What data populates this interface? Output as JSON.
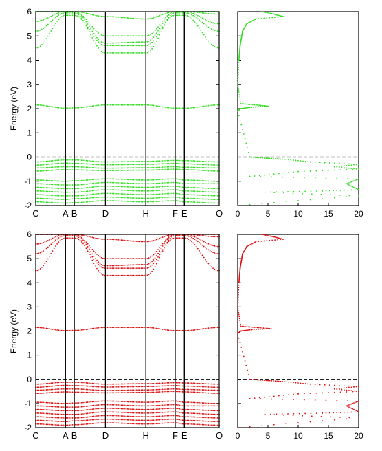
{
  "chart_data": [
    {
      "type": "line",
      "title": "",
      "ylabel": "Energy (eV)",
      "xlabel": "",
      "ylim": [
        -2,
        6
      ],
      "yticks": [
        "-2",
        "-1",
        "0",
        "1",
        "2",
        "3",
        "4",
        "5",
        "6"
      ],
      "kpoint_labels": [
        "C",
        "A",
        "B",
        "D",
        "H",
        "F",
        "E",
        "O"
      ],
      "kpoint_positions": [
        0,
        0.162,
        0.21,
        0.38,
        0.6,
        0.76,
        0.81,
        1.0
      ],
      "grid": false,
      "fermi_level": 0,
      "series_color": "#33dd22",
      "bands": [
        {
          "values": [
            -0.2,
            -0.12,
            -0.12,
            -0.2,
            -0.18,
            -0.14,
            -0.15,
            -0.2
          ]
        },
        {
          "values": [
            -0.33,
            -0.25,
            -0.26,
            -0.32,
            -0.3,
            -0.26,
            -0.28,
            -0.33
          ]
        },
        {
          "values": [
            -0.45,
            -0.4,
            -0.4,
            -0.46,
            -0.44,
            -0.4,
            -0.42,
            -0.45
          ]
        },
        {
          "values": [
            -0.58,
            -0.52,
            -0.53,
            -0.56,
            -0.54,
            -0.5,
            -0.52,
            -0.58
          ]
        },
        {
          "values": [
            -0.95,
            -1.0,
            -0.98,
            -0.9,
            -0.95,
            -0.9,
            -0.95,
            -1.0
          ]
        },
        {
          "values": [
            -1.1,
            -1.15,
            -1.15,
            -1.05,
            -1.1,
            -1.05,
            -1.1,
            -1.1
          ]
        },
        {
          "values": [
            -1.25,
            -1.3,
            -1.3,
            -1.2,
            -1.25,
            -1.2,
            -1.25,
            -1.3
          ]
        },
        {
          "values": [
            -1.4,
            -1.45,
            -1.45,
            -1.35,
            -1.4,
            -1.35,
            -1.4,
            -1.45
          ]
        },
        {
          "values": [
            -1.55,
            -1.6,
            -1.6,
            -1.5,
            -1.55,
            -1.5,
            -1.55,
            -1.6
          ]
        },
        {
          "values": [
            -1.7,
            -1.75,
            -1.72,
            -1.65,
            -1.7,
            -1.65,
            -1.7,
            -1.75
          ]
        },
        {
          "values": [
            -1.85,
            -1.9,
            -1.88,
            -1.8,
            -1.85,
            -1.8,
            -1.85,
            -1.9
          ]
        },
        {
          "values": [
            2.15,
            2.02,
            2.03,
            2.15,
            2.15,
            2.02,
            2.02,
            2.15
          ]
        },
        {
          "values": [
            4.5,
            5.85,
            5.85,
            4.6,
            4.6,
            5.85,
            5.85,
            4.5
          ]
        },
        {
          "values": [
            5.2,
            5.95,
            5.95,
            4.3,
            4.3,
            5.95,
            5.95,
            5.2
          ]
        },
        {
          "values": [
            5.6,
            6.0,
            6.0,
            4.7,
            4.75,
            6.0,
            6.0,
            5.5
          ]
        },
        {
          "values": [
            6.0,
            6.0,
            6.0,
            5.0,
            5.0,
            6.0,
            6.0,
            5.9
          ]
        },
        {
          "values": [
            6.0,
            6.0,
            6.0,
            5.8,
            5.7,
            6.0,
            6.0,
            6.0
          ]
        }
      ],
      "dos": {
        "xlim": [
          0,
          20
        ],
        "xticks": [
          "0",
          "5",
          "10",
          "15",
          "20"
        ],
        "energy": [
          6.0,
          5.9,
          5.8,
          5.7,
          5.5,
          5.2,
          4.9,
          4.6,
          4.3,
          4.0,
          3.0,
          2.2,
          2.15,
          2.1,
          2.05,
          2.0,
          1.9,
          0.0,
          -0.05,
          -0.1,
          -0.2,
          -0.3,
          -0.4,
          -0.5,
          -0.6,
          -0.8,
          -0.9,
          -1.1,
          -1.35,
          -1.4,
          -1.45,
          -1.6,
          -2.0
        ],
        "dos_values": [
          4.0,
          6.0,
          7.5,
          3.0,
          1.5,
          0.8,
          0.6,
          0.4,
          0.3,
          0.2,
          0.0,
          0.5,
          3.0,
          5.0,
          2.0,
          0.5,
          0.0,
          2.0,
          5.0,
          8.0,
          12.0,
          20.0,
          16.0,
          20.0,
          10.0,
          2.0,
          20.0,
          18.0,
          20.0,
          14.0,
          4.5,
          20.0,
          0.0
        ],
        "dos_color": "#33dd22"
      }
    },
    {
      "type": "line",
      "title": "",
      "ylabel": "Energy (eV)",
      "xlabel": "",
      "ylim": [
        -2,
        6
      ],
      "yticks": [
        "-2",
        "-1",
        "0",
        "1",
        "2",
        "3",
        "4",
        "5",
        "6"
      ],
      "kpoint_labels": [
        "C",
        "A",
        "B",
        "D",
        "H",
        "F",
        "E",
        "O"
      ],
      "kpoint_positions": [
        0,
        0.162,
        0.21,
        0.38,
        0.6,
        0.76,
        0.81,
        1.0
      ],
      "grid": false,
      "fermi_level": 0,
      "series_color": "#dd1111",
      "bands": [
        {
          "values": [
            -0.2,
            -0.12,
            -0.12,
            -0.2,
            -0.18,
            -0.14,
            -0.15,
            -0.2
          ]
        },
        {
          "values": [
            -0.33,
            -0.25,
            -0.26,
            -0.32,
            -0.3,
            -0.26,
            -0.28,
            -0.33
          ]
        },
        {
          "values": [
            -0.45,
            -0.4,
            -0.4,
            -0.46,
            -0.44,
            -0.4,
            -0.42,
            -0.45
          ]
        },
        {
          "values": [
            -0.58,
            -0.52,
            -0.53,
            -0.56,
            -0.54,
            -0.5,
            -0.52,
            -0.58
          ]
        },
        {
          "values": [
            -0.95,
            -1.0,
            -0.98,
            -0.9,
            -0.95,
            -0.9,
            -0.95,
            -1.0
          ]
        },
        {
          "values": [
            -1.1,
            -1.15,
            -1.15,
            -1.05,
            -1.1,
            -1.05,
            -1.1,
            -1.1
          ]
        },
        {
          "values": [
            -1.25,
            -1.3,
            -1.3,
            -1.2,
            -1.25,
            -1.2,
            -1.25,
            -1.3
          ]
        },
        {
          "values": [
            -1.4,
            -1.45,
            -1.45,
            -1.35,
            -1.4,
            -1.35,
            -1.4,
            -1.45
          ]
        },
        {
          "values": [
            -1.55,
            -1.6,
            -1.6,
            -1.5,
            -1.55,
            -1.5,
            -1.55,
            -1.6
          ]
        },
        {
          "values": [
            -1.7,
            -1.75,
            -1.72,
            -1.65,
            -1.7,
            -1.65,
            -1.7,
            -1.75
          ]
        },
        {
          "values": [
            -1.85,
            -1.9,
            -1.88,
            -1.8,
            -1.85,
            -1.8,
            -1.85,
            -1.9
          ]
        },
        {
          "values": [
            2.15,
            2.02,
            2.03,
            2.15,
            2.15,
            2.02,
            2.02,
            2.15
          ]
        },
        {
          "values": [
            4.5,
            5.85,
            5.85,
            4.6,
            4.6,
            5.85,
            5.85,
            4.5
          ]
        },
        {
          "values": [
            5.2,
            5.95,
            5.95,
            4.3,
            4.3,
            5.95,
            5.95,
            5.2
          ]
        },
        {
          "values": [
            5.6,
            6.0,
            6.0,
            4.7,
            4.75,
            6.0,
            6.0,
            5.5
          ]
        },
        {
          "values": [
            6.0,
            6.0,
            6.0,
            5.0,
            5.0,
            6.0,
            6.0,
            5.9
          ]
        },
        {
          "values": [
            6.0,
            6.0,
            6.0,
            5.8,
            5.7,
            6.0,
            6.0,
            6.0
          ]
        }
      ],
      "dos": {
        "xlim": [
          0,
          20
        ],
        "xticks": [
          "0",
          "5",
          "10",
          "15",
          "20"
        ],
        "energy": [
          6.0,
          5.9,
          5.8,
          5.7,
          5.5,
          5.2,
          4.9,
          4.6,
          4.3,
          4.0,
          3.0,
          2.2,
          2.15,
          2.1,
          2.05,
          2.0,
          1.9,
          0.0,
          -0.05,
          -0.1,
          -0.2,
          -0.3,
          -0.4,
          -0.5,
          -0.6,
          -0.8,
          -0.9,
          -1.1,
          -1.35,
          -1.4,
          -1.45,
          -1.6,
          -2.0
        ],
        "dos_values": [
          4.0,
          6.0,
          7.5,
          3.0,
          1.5,
          0.8,
          0.6,
          0.4,
          0.3,
          0.2,
          0.0,
          0.5,
          3.0,
          5.5,
          2.0,
          0.5,
          0.0,
          2.0,
          5.0,
          8.0,
          12.0,
          20.0,
          16.0,
          20.0,
          10.0,
          2.0,
          20.0,
          18.0,
          20.0,
          14.0,
          4.5,
          20.0,
          0.0
        ],
        "dos_color": "#dd1111"
      }
    }
  ]
}
